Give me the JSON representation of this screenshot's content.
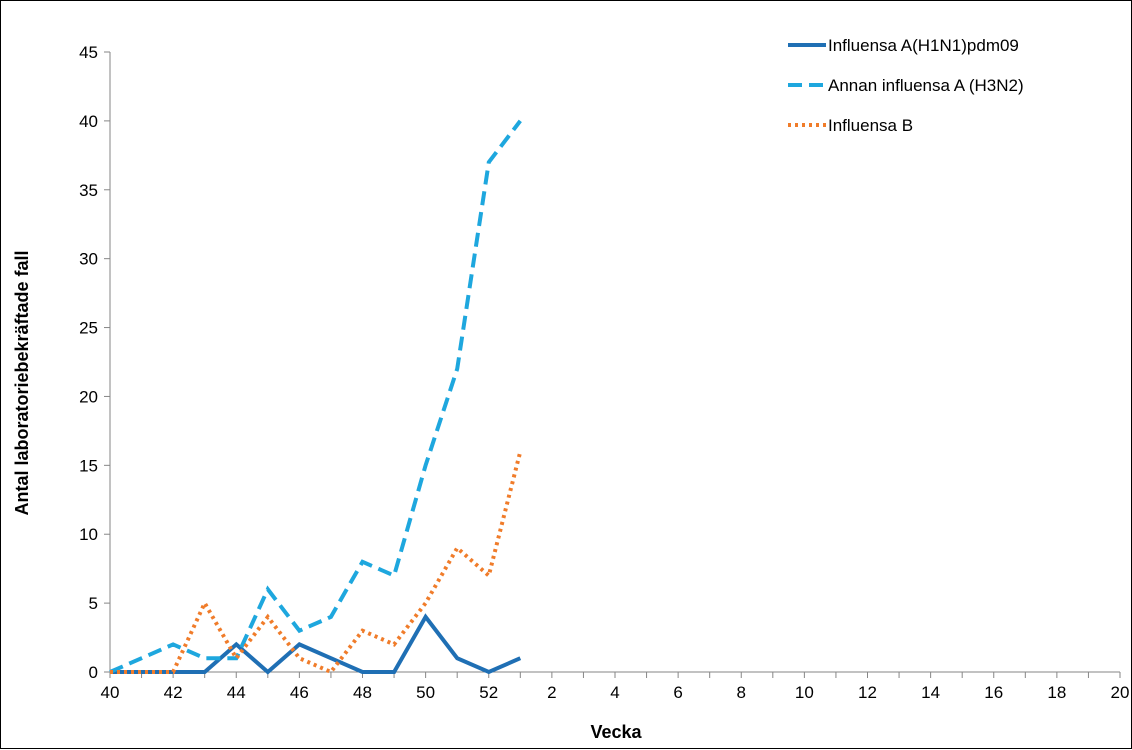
{
  "chart_data": {
    "type": "line",
    "title": "",
    "xlabel": "Vecka",
    "ylabel": "Antal laboratoriebekräftade fall",
    "ylim": [
      0,
      45
    ],
    "yticks": [
      "0",
      "5",
      "10",
      "15",
      "20",
      "25",
      "30",
      "35",
      "40",
      "45"
    ],
    "x_categories": [
      "40",
      "41",
      "42",
      "43",
      "44",
      "45",
      "46",
      "47",
      "48",
      "49",
      "50",
      "51",
      "52",
      "1",
      "2",
      "3",
      "4",
      "5",
      "6",
      "7",
      "8",
      "9",
      "10",
      "11",
      "12",
      "13",
      "14",
      "15",
      "16",
      "17",
      "18",
      "19",
      "20"
    ],
    "x_tick_labels": [
      "40",
      "",
      "42",
      "",
      "44",
      "",
      "46",
      "",
      "48",
      "",
      "50",
      "",
      "52",
      "",
      "2",
      "",
      "4",
      "",
      "6",
      "",
      "8",
      "",
      "10",
      "",
      "12",
      "",
      "14",
      "",
      "16",
      "",
      "18",
      "",
      "20"
    ],
    "grid": false,
    "legend_position": "top-right",
    "series": [
      {
        "name": "Influensa A(H1N1)pdm09",
        "color": "#1f6fb4",
        "line_style": "solid",
        "values": [
          0,
          0,
          0,
          0,
          2,
          0,
          2,
          1,
          0,
          0,
          4,
          1,
          0,
          1
        ]
      },
      {
        "name": "Annan influensa A (H3N2)",
        "color": "#1ea7de",
        "line_style": "dashed",
        "values": [
          0,
          1,
          2,
          1,
          1,
          6,
          3,
          4,
          8,
          7,
          15,
          22,
          37,
          40
        ]
      },
      {
        "name": "Influensa B",
        "color": "#f07c2a",
        "line_style": "dotted",
        "values": [
          0,
          0,
          0,
          5,
          1,
          4,
          1,
          0,
          3,
          2,
          5,
          9,
          7,
          16
        ]
      }
    ]
  }
}
